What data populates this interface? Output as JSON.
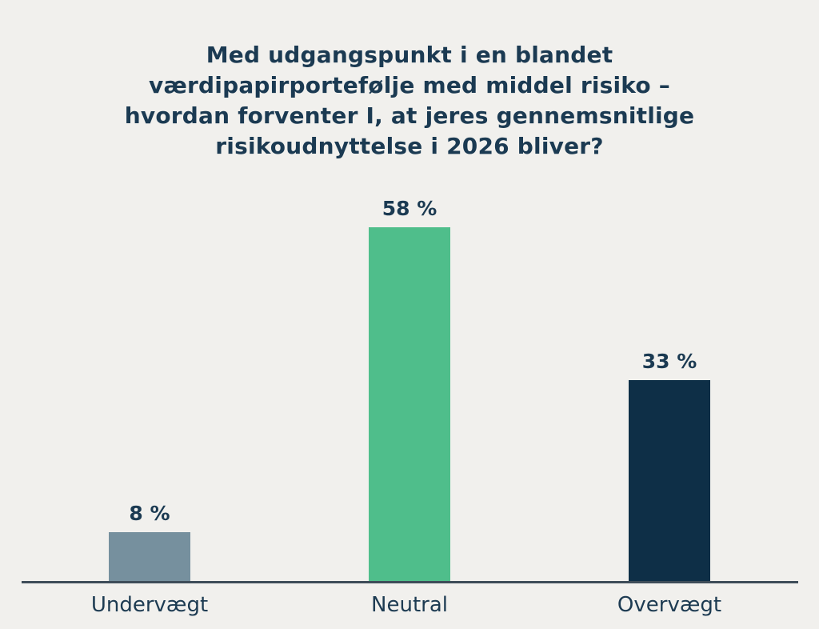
{
  "page": {
    "background_color": "#F1F0ED",
    "text_color": "#1B3A52"
  },
  "title": {
    "full_text": "Med udgangspunkt i en blandet værdipapirportefølje med middel risiko – hvordan forventer I, at jeres gennemsnitlige risikoudnyttelse i 2026 bliver?",
    "lines": [
      "Med udgangspunkt i en blandet",
      "værdipapirportefølje med middel risiko –",
      "hvordan forventer I, at jeres gennemsnitlige",
      "risikoudnyttelse i 2026 bliver?"
    ]
  },
  "chart_data": {
    "type": "bar",
    "title": "Med udgangspunkt i en blandet værdipapirportefølje med middel risiko – hvordan forventer I, at jeres gennemsnitlige risikoudnyttelse i 2026 bliver?",
    "categories": [
      "Undervægt",
      "Neutral",
      "Overvægt"
    ],
    "values": [
      8,
      58,
      33
    ],
    "value_labels": [
      "8 %",
      "58 %",
      "33 %"
    ],
    "colors": [
      "#76909E",
      "#4FBE8B",
      "#0E2F47"
    ],
    "xlabel": "",
    "ylabel": "",
    "ylim": [
      0,
      60
    ],
    "grid": false,
    "legend": false,
    "axis_line_color": "#3E4D59"
  }
}
